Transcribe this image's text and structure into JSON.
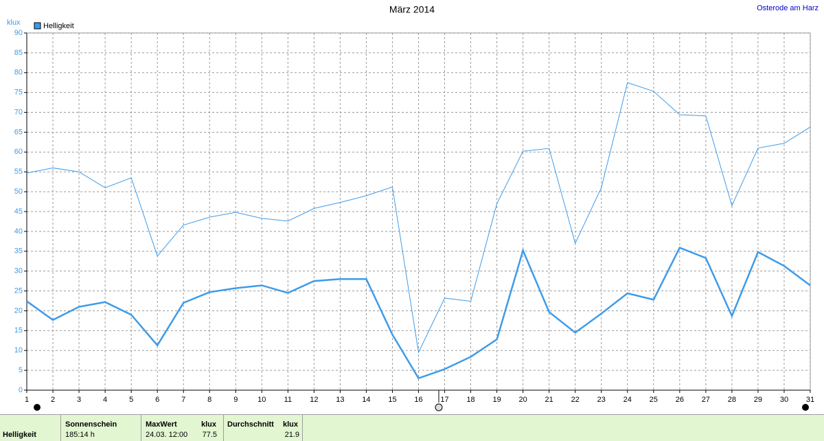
{
  "chart_data": {
    "type": "line",
    "title": "März 2014",
    "location": "Osterode am Harz",
    "y_label": "klux",
    "x": [
      1,
      2,
      3,
      4,
      5,
      6,
      7,
      8,
      9,
      10,
      11,
      12,
      13,
      14,
      15,
      16,
      17,
      18,
      19,
      20,
      21,
      22,
      23,
      24,
      25,
      26,
      27,
      28,
      29,
      30,
      31
    ],
    "xlim": [
      1,
      31
    ],
    "xticks": [
      1,
      2,
      3,
      4,
      5,
      6,
      7,
      8,
      9,
      10,
      11,
      12,
      13,
      14,
      15,
      16,
      17,
      18,
      19,
      20,
      21,
      22,
      23,
      24,
      25,
      26,
      27,
      28,
      29,
      30,
      31
    ],
    "ylim": [
      0,
      90
    ],
    "yticks": [
      0,
      5,
      10,
      15,
      20,
      25,
      30,
      35,
      40,
      45,
      50,
      55,
      60,
      65,
      70,
      75,
      80,
      85,
      90
    ],
    "grid": true,
    "legend": "top-left",
    "series": [
      {
        "name": "Helligkeit",
        "color": "#3d9be9",
        "width": 2.5,
        "values": [
          22.4,
          17.7,
          21,
          22.2,
          19,
          11.3,
          22,
          24.7,
          25.7,
          26.4,
          24.5,
          27.5,
          28,
          28,
          14,
          3,
          5.3,
          8.4,
          12.8,
          35.2,
          19.7,
          14.5,
          19.3,
          24.4,
          22.8,
          35.9,
          33.3,
          18.7,
          34.8,
          31.3,
          26.4
        ]
      },
      {
        "color": "#3d9be9",
        "width": 1,
        "values": [
          54.7,
          56,
          55,
          51,
          53.5,
          33.8,
          41.6,
          43.6,
          44.8,
          43.3,
          42.6,
          45.8,
          47.3,
          49,
          51.2,
          9.5,
          23.2,
          22.4,
          47,
          60.2,
          60.9,
          37,
          51,
          77.5,
          75.3,
          69.4,
          69.1,
          46.5,
          61,
          62.2,
          66.3
        ]
      }
    ]
  },
  "footer": {
    "row_label": "Helligkeit",
    "sunshine": {
      "header": "Sonnenschein",
      "value": "185:14 h"
    },
    "max": {
      "header": "MaxWert",
      "unit": "klux",
      "date": "24.03. 12:00",
      "value": 77.5
    },
    "avg": {
      "header": "Durchschnitt",
      "unit": "klux",
      "value": 21.9
    }
  }
}
